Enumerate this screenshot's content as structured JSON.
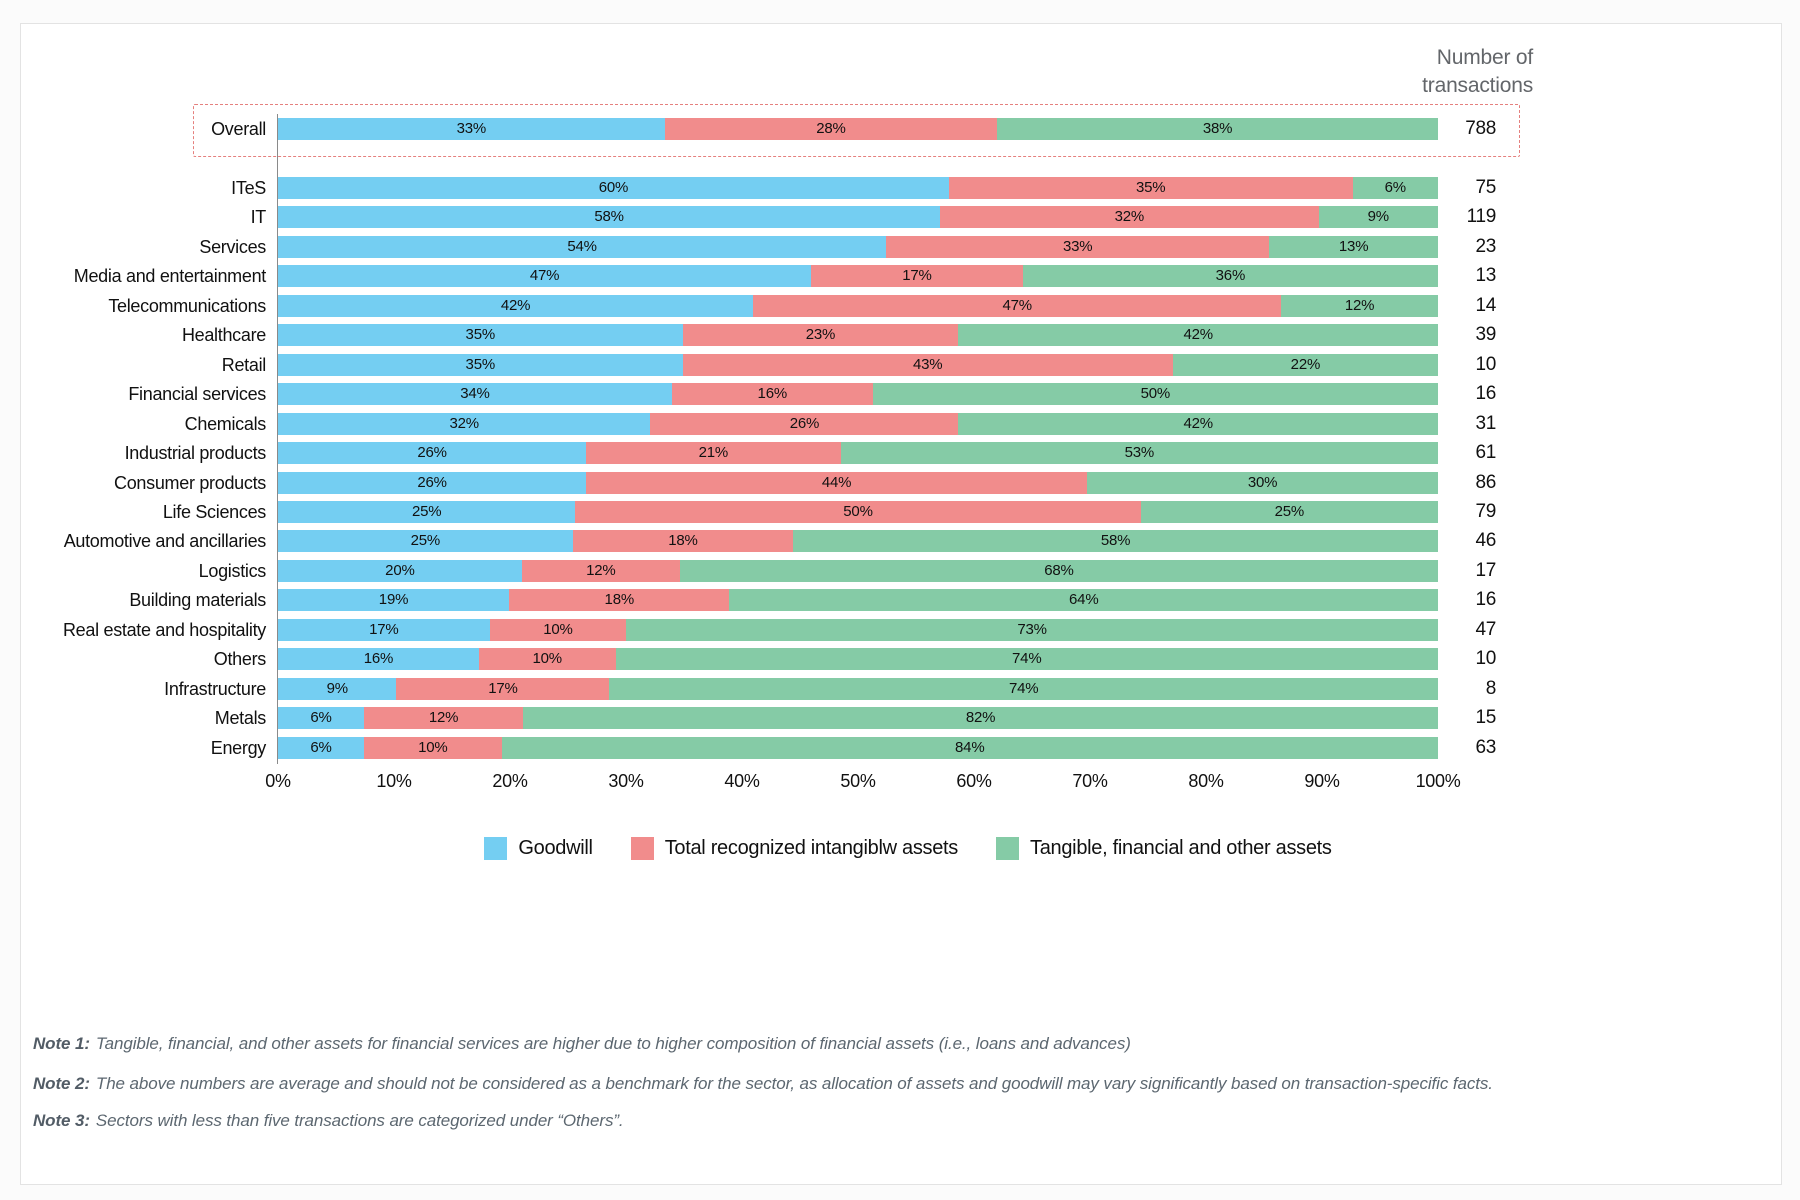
{
  "page": {
    "transactions_header": "Number of transactions"
  },
  "colors": {
    "goodwill": "#74CEF2",
    "intangibles": "#F18C8C",
    "tangible": "#85CBA6",
    "highlight_border": "#E5807E",
    "axis_line": "#8A8A8A"
  },
  "chart_data": {
    "type": "bar",
    "stacked": true,
    "orientation": "horizontal",
    "value_unit": "%",
    "right_column_header": "Number of transactions",
    "series_names": [
      "Goodwill",
      "Total recognized intangiblw assets",
      "Tangible, financial and other assets"
    ],
    "x_axis": {
      "range": [
        0,
        100
      ],
      "ticks": [
        "0%",
        "10%",
        "20%",
        "30%",
        "40%",
        "50%",
        "60%",
        "70%",
        "80%",
        "90%",
        "100%"
      ]
    },
    "overall": {
      "label": "Overall",
      "values": [
        33,
        28,
        38
      ],
      "count": 788
    },
    "rows": [
      {
        "label": "ITeS",
        "values": [
          60,
          35,
          6
        ],
        "count": 75
      },
      {
        "label": "IT",
        "values": [
          58,
          32,
          9
        ],
        "count": 119
      },
      {
        "label": "Services",
        "values": [
          54,
          33,
          13
        ],
        "count": 23
      },
      {
        "label": "Media and entertainment",
        "values": [
          47,
          17,
          36
        ],
        "count": 13
      },
      {
        "label": "Telecommunications",
        "values": [
          42,
          47,
          12
        ],
        "count": 14
      },
      {
        "label": "Healthcare",
        "values": [
          35,
          23,
          42
        ],
        "count": 39
      },
      {
        "label": "Retail",
        "values": [
          35,
          43,
          22
        ],
        "count": 10
      },
      {
        "label": "Financial services",
        "values": [
          34,
          16,
          50
        ],
        "count": 16
      },
      {
        "label": "Chemicals",
        "values": [
          32,
          26,
          42
        ],
        "count": 31
      },
      {
        "label": "Industrial products",
        "values": [
          26,
          21,
          53
        ],
        "count": 61
      },
      {
        "label": "Consumer products",
        "values": [
          26,
          44,
          30
        ],
        "count": 86
      },
      {
        "label": "Life Sciences",
        "values": [
          25,
          50,
          25
        ],
        "count": 79
      },
      {
        "label": "Automotive and ancillaries",
        "values": [
          25,
          18,
          58
        ],
        "count": 46
      },
      {
        "label": "Logistics",
        "values": [
          20,
          12,
          68
        ],
        "count": 17
      },
      {
        "label": "Building materials",
        "values": [
          19,
          18,
          64
        ],
        "count": 16
      },
      {
        "label": "Real estate and hospitality",
        "values": [
          17,
          10,
          73
        ],
        "count": 47
      },
      {
        "label": "Others",
        "values": [
          16,
          10,
          74
        ],
        "count": 10
      },
      {
        "label": "Infrastructure",
        "values": [
          9,
          17,
          74
        ],
        "count": 8
      },
      {
        "label": "Metals",
        "values": [
          6,
          12,
          82
        ],
        "count": 15
      },
      {
        "label": "Energy",
        "values": [
          6,
          10,
          84
        ],
        "count": 63
      }
    ]
  },
  "legend": {
    "items": [
      {
        "label": "Goodwill",
        "color": "#74CEF2"
      },
      {
        "label": "Total recognized intangiblw assets",
        "color": "#F18C8C"
      },
      {
        "label": "Tangible, financial and other assets",
        "color": "#85CBA6"
      }
    ]
  },
  "notes": [
    {
      "prefix": "Note 1:",
      "text": "Tangible, financial, and other assets for financial services are higher due to higher composition of financial assets (i.e., loans and advances)"
    },
    {
      "prefix": "Note 2:",
      "text": "The above numbers are average and should not be considered as a benchmark for the sector, as allocation of assets and goodwill may vary significantly based on transaction-specific facts."
    },
    {
      "prefix": "Note 3:",
      "text": "Sectors with less than five transactions are categorized under “Others”."
    }
  ]
}
